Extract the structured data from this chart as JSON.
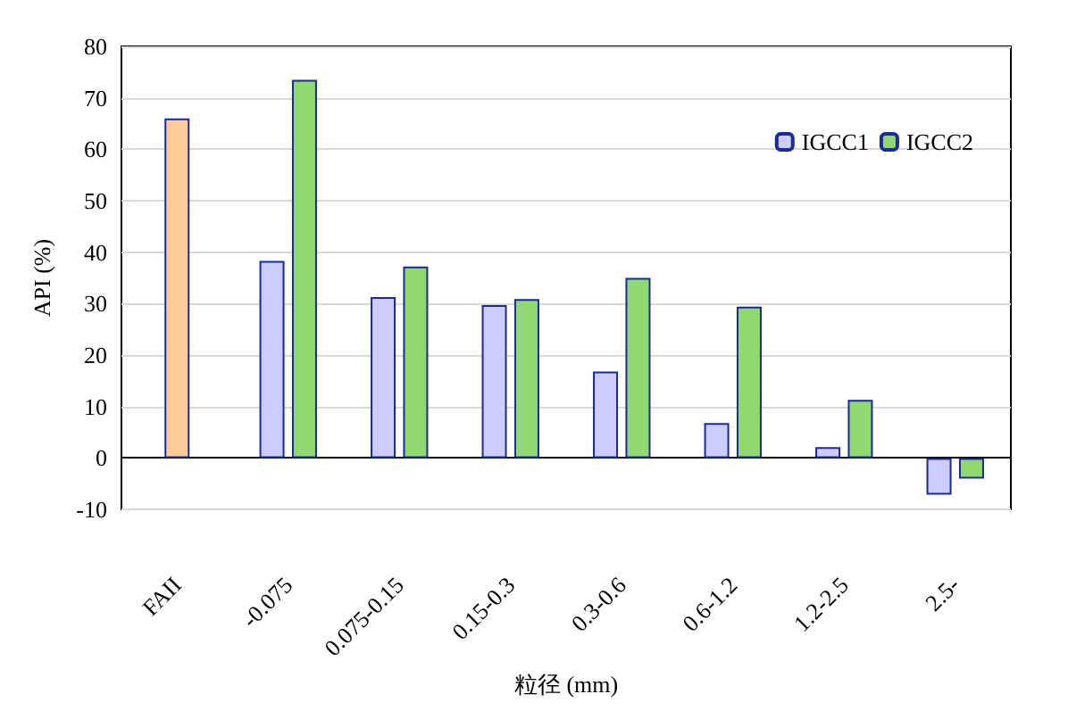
{
  "chart_data": {
    "type": "bar",
    "xlabel": "粒径 (mm)",
    "ylabel": "API (%)",
    "categories": [
      "FAII",
      "-0.075",
      "0.075-0.15",
      "0.15-0.3",
      "0.3-0.6",
      "0.6-1.2",
      "1.2-2.5",
      "2.5-"
    ],
    "series": [
      {
        "name": "IGCC1",
        "color": "#ccccff",
        "values": [
          null,
          38.3,
          31.3,
          29.7,
          16.8,
          6.8,
          2.1,
          -7.1
        ]
      },
      {
        "name": "IGCC2",
        "color": "#8fd970",
        "values": [
          null,
          73.5,
          37.2,
          30.9,
          35.0,
          29.4,
          11.3,
          -4.0
        ]
      },
      {
        "color": "#ffcc99",
        "values": [
          66,
          null,
          null,
          null,
          null,
          null,
          null,
          null
        ]
      }
    ],
    "ylim": [
      -10,
      80
    ],
    "yticks": [
      -10,
      0,
      10,
      20,
      30,
      40,
      50,
      60,
      70,
      80
    ],
    "grid": "y",
    "legend": "top right"
  }
}
